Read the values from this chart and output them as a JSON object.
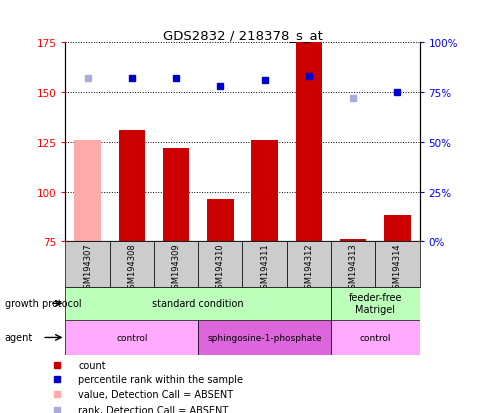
{
  "title": "GDS2832 / 218378_s_at",
  "samples": [
    "GSM194307",
    "GSM194308",
    "GSM194309",
    "GSM194310",
    "GSM194311",
    "GSM194312",
    "GSM194313",
    "GSM194314"
  ],
  "bar_values": [
    126,
    131,
    122,
    96,
    126,
    175,
    76,
    88
  ],
  "bar_absent": [
    true,
    false,
    false,
    false,
    false,
    false,
    false,
    false
  ],
  "rank_values": [
    157,
    157,
    157,
    153,
    156,
    158,
    147,
    150
  ],
  "rank_absent": [
    true,
    false,
    false,
    false,
    false,
    false,
    true,
    false
  ],
  "ylim_left": [
    75,
    175
  ],
  "ylim_right": [
    0,
    100
  ],
  "yticks_left": [
    75,
    100,
    125,
    150,
    175
  ],
  "yticks_right": [
    0,
    25,
    50,
    75,
    100
  ],
  "ytick_labels_right": [
    "0%",
    "25%",
    "50%",
    "75%",
    "100%"
  ],
  "bar_color": "#cc0000",
  "bar_absent_color": "#ffaaaa",
  "rank_color": "#0000cc",
  "rank_absent_color": "#aaaadd",
  "bg_color": "white",
  "growth_protocol_label": "growth protocol",
  "agent_label": "agent",
  "growth_groups": [
    {
      "label": "standard condition",
      "start": 0,
      "end": 5,
      "color": "#bbffbb"
    },
    {
      "label": "feeder-free\nMatrigel",
      "start": 6,
      "end": 7,
      "color": "#bbffbb"
    }
  ],
  "agent_groups": [
    {
      "label": "control",
      "start": 0,
      "end": 2,
      "color": "#ffaaff"
    },
    {
      "label": "sphingosine-1-phosphate",
      "start": 3,
      "end": 5,
      "color": "#dd66dd"
    },
    {
      "label": "control",
      "start": 6,
      "end": 7,
      "color": "#ffaaff"
    }
  ],
  "legend_items": [
    {
      "label": "count",
      "color": "#cc0000"
    },
    {
      "label": "percentile rank within the sample",
      "color": "#0000cc"
    },
    {
      "label": "value, Detection Call = ABSENT",
      "color": "#ffaaaa"
    },
    {
      "label": "rank, Detection Call = ABSENT",
      "color": "#aaaadd"
    }
  ],
  "sample_box_color": "#cccccc",
  "arrow_color": "black"
}
